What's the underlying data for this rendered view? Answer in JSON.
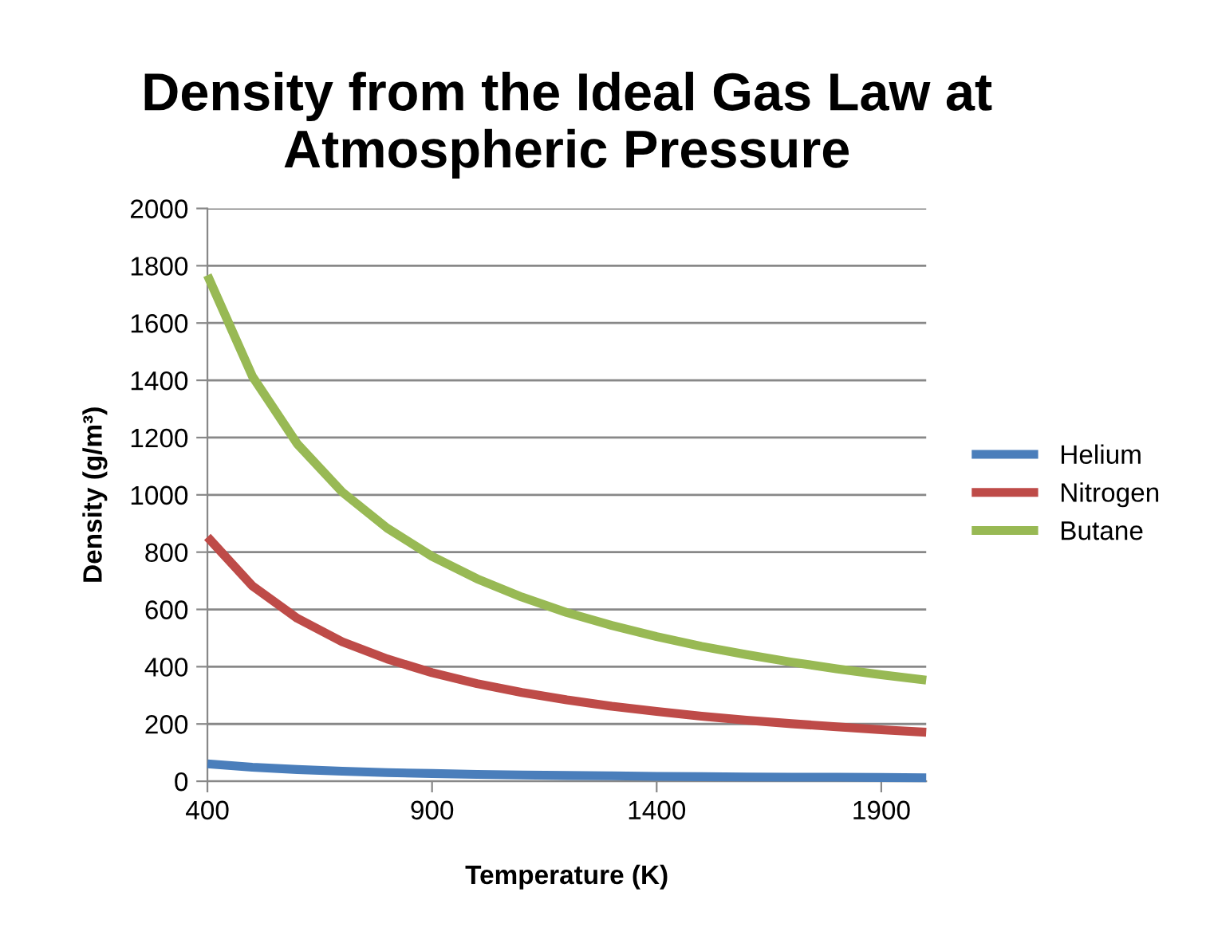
{
  "chart_data": {
    "type": "line",
    "title": "Density from the Ideal Gas Law at Atmospheric Pressure",
    "xlabel": "Temperature (K)",
    "ylabel": "Density (g/m³)",
    "x": [
      400,
      500,
      600,
      700,
      800,
      900,
      1000,
      1100,
      1200,
      1300,
      1400,
      1500,
      1600,
      1700,
      1800,
      1900,
      2000
    ],
    "series": [
      {
        "name": "Helium",
        "color": "#4a7ebb",
        "values": [
          61,
          49,
          41,
          35,
          30,
          27,
          24,
          22,
          20,
          19,
          17,
          16,
          15,
          14,
          14,
          13,
          12
        ]
      },
      {
        "name": "Nitrogen",
        "color": "#be4b48",
        "values": [
          853,
          682,
          569,
          487,
          427,
          379,
          341,
          310,
          284,
          262,
          244,
          227,
          213,
          201,
          190,
          180,
          171
        ]
      },
      {
        "name": "Butane",
        "color": "#98b954",
        "values": [
          1767,
          1414,
          1178,
          1010,
          884,
          785,
          707,
          643,
          589,
          544,
          505,
          471,
          442,
          416,
          393,
          372,
          353
        ]
      }
    ],
    "xlim": [
      400,
      2000
    ],
    "ylim": [
      0,
      2000
    ],
    "xticks": [
      400,
      900,
      1400,
      1900
    ],
    "yticks": [
      0,
      200,
      400,
      600,
      800,
      1000,
      1200,
      1400,
      1600,
      1800,
      2000
    ],
    "grid": "y",
    "legend": "right",
    "marker": "none",
    "line_style": "solid"
  }
}
